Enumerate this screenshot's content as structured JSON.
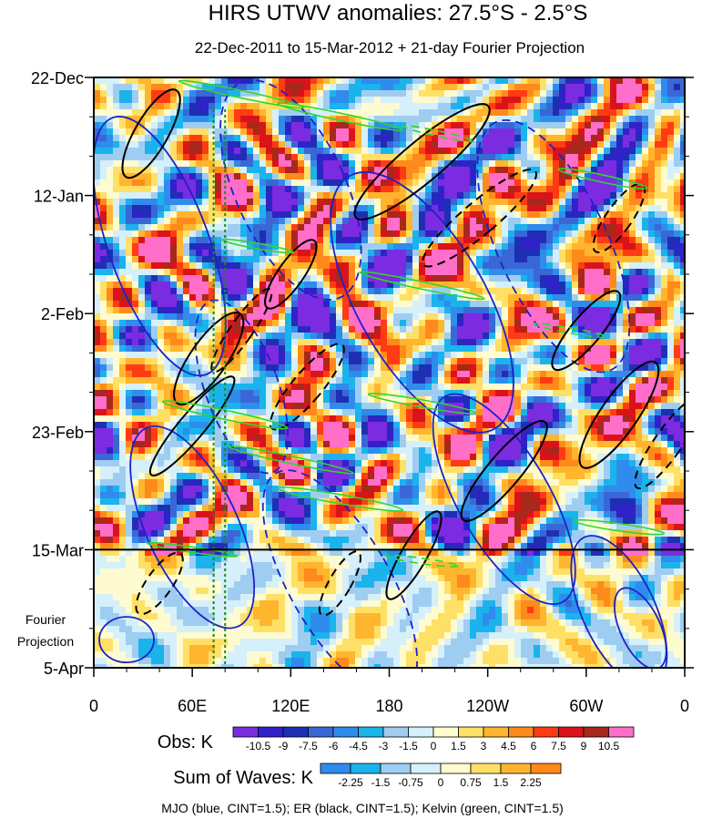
{
  "chart_data": {
    "type": "heatmap",
    "title": "HIRS UTWV anomalies: 27.5°S - 2.5°S",
    "subtitle": "22-Dec-2011 to 15-Mar-2012 + 21-day Fourier Projection",
    "x_ticks": [
      "0",
      "60E",
      "120E",
      "180",
      "120W",
      "60W",
      "0"
    ],
    "x_tick_lons": [
      0,
      60,
      120,
      180,
      240,
      300,
      360
    ],
    "xlim": [
      0,
      360
    ],
    "y_ticks": [
      "22-Dec",
      "12-Jan",
      "2-Feb",
      "23-Feb",
      "15-Mar",
      "5-Apr"
    ],
    "y_tick_days": [
      0,
      21,
      42,
      63,
      84,
      105
    ],
    "ylim": [
      0,
      105
    ],
    "projection_start_day": 84,
    "projection_label_lines": [
      "Fourier",
      "Projection"
    ],
    "mjo_reference_lons": [
      73,
      80
    ],
    "obs_colorbar": {
      "label": "Obs: K",
      "levels": [
        "-10.5",
        "-9",
        "-7.5",
        "-6",
        "-4.5",
        "-3",
        "-1.5",
        "0",
        "1.5",
        "3",
        "4.5",
        "6",
        "7.5",
        "9",
        "10.5"
      ],
      "colors": [
        "#7b2be0",
        "#3022c8",
        "#1f2fb4",
        "#3a67d6",
        "#2f8cec",
        "#1ab3ec",
        "#9fcdf1",
        "#d5f0fa",
        "#fffbd0",
        "#ffe066",
        "#ffb52e",
        "#ff8a1c",
        "#ff3b14",
        "#d8141a",
        "#a8281c",
        "#ff6ec8"
      ]
    },
    "waves_colorbar": {
      "label": "Sum of Waves: K",
      "levels": [
        "-2.25",
        "-1.5",
        "-0.75",
        "0",
        "0.75",
        "1.5",
        "2.25"
      ],
      "colors": [
        "#2f8cec",
        "#1ab3ec",
        "#9fcdf1",
        "#d5f0fa",
        "#fffbd0",
        "#ffe066",
        "#ffb52e",
        "#ff8a1c"
      ]
    },
    "contour_legend": "MJO (blue, CINT=1.5); ER (black, CINT=1.5); Kelvin (green, CINT=1.5)",
    "contour_colors": {
      "mjo": "#1c22c8",
      "er": "#000000",
      "kelvin": "#2ed62e"
    }
  }
}
